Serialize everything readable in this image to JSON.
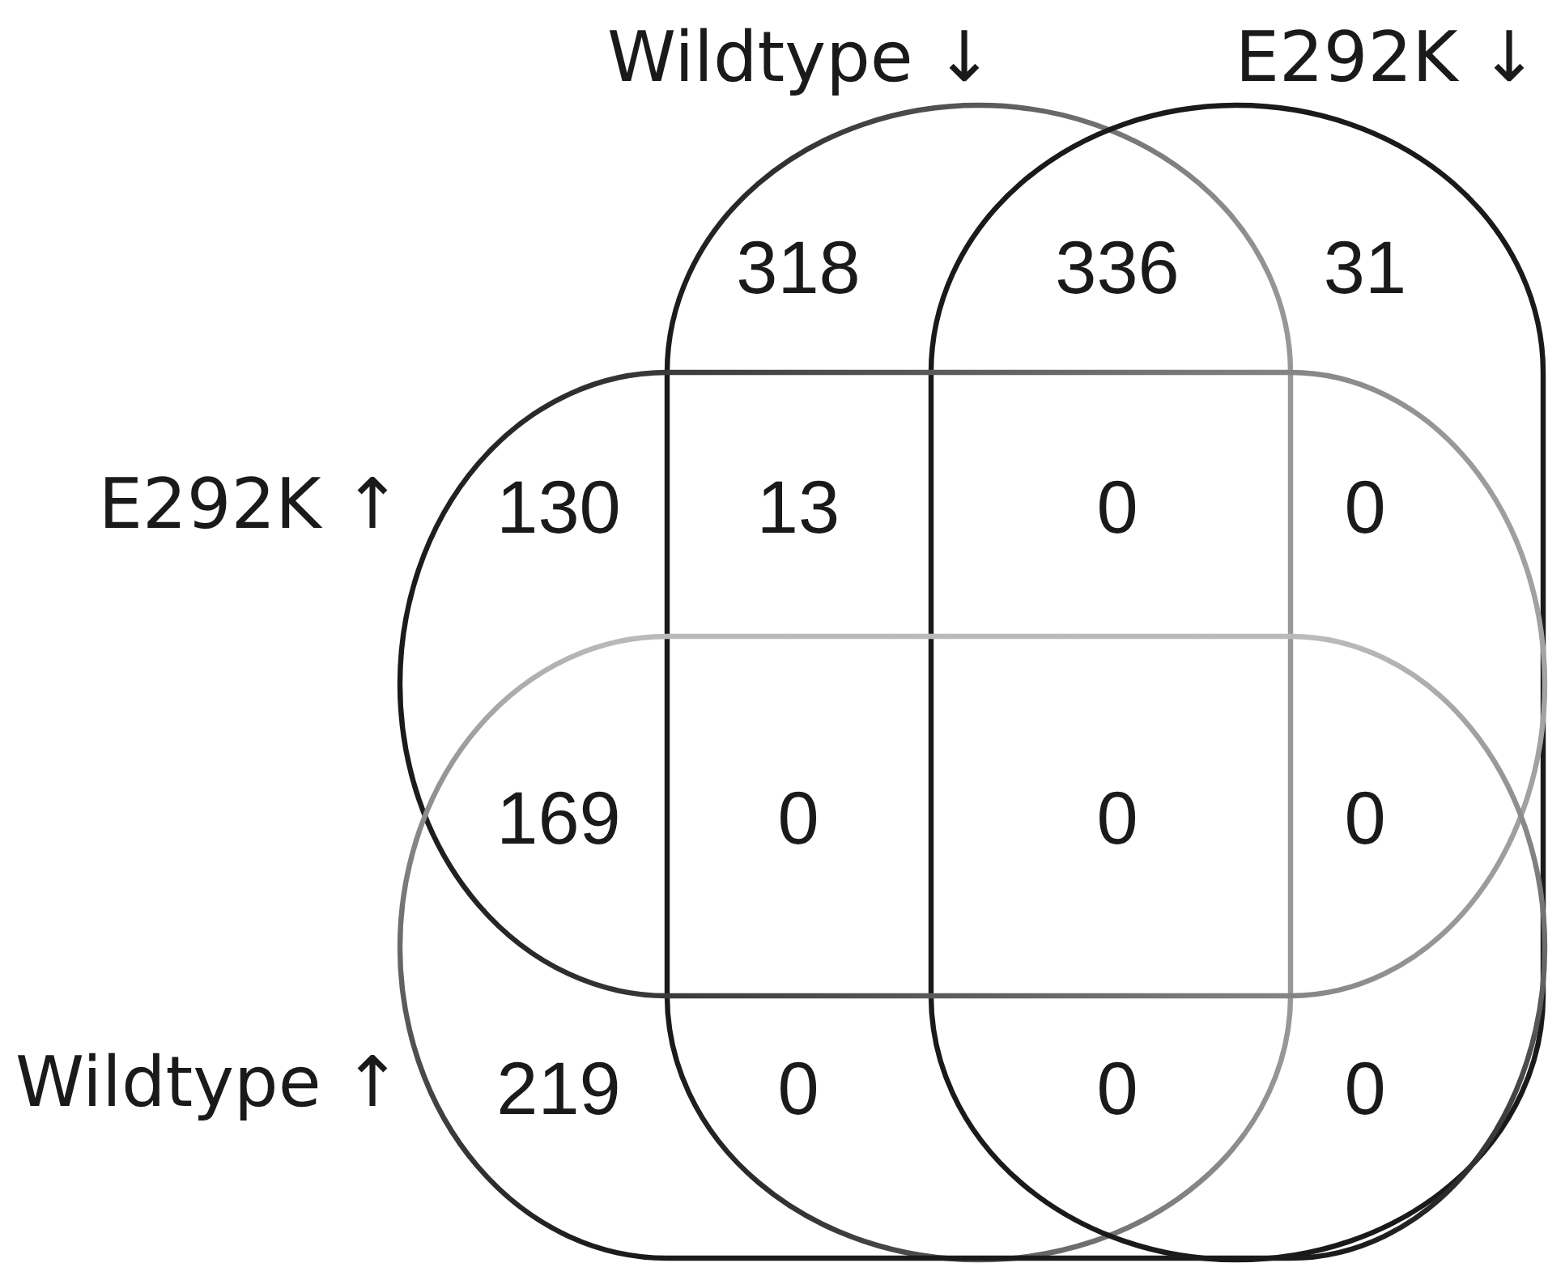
{
  "chart_data": {
    "type": "other",
    "annotations": [
      "Wildtype ↓",
      "E292K ↓",
      "E292K ↑",
      "Wildtype ↑"
    ],
    "color": "#1a1a1a",
    "categories": [
      null,
      null,
      null,
      null,
      null,
      null,
      null,
      null,
      null,
      null,
      null,
      null,
      null,
      null,
      null
    ],
    "values": [
      318,
      336,
      31,
      130,
      13,
      0,
      0,
      169,
      0,
      0,
      0,
      219,
      0,
      0,
      0
    ],
    "data_labels": true
  }
}
